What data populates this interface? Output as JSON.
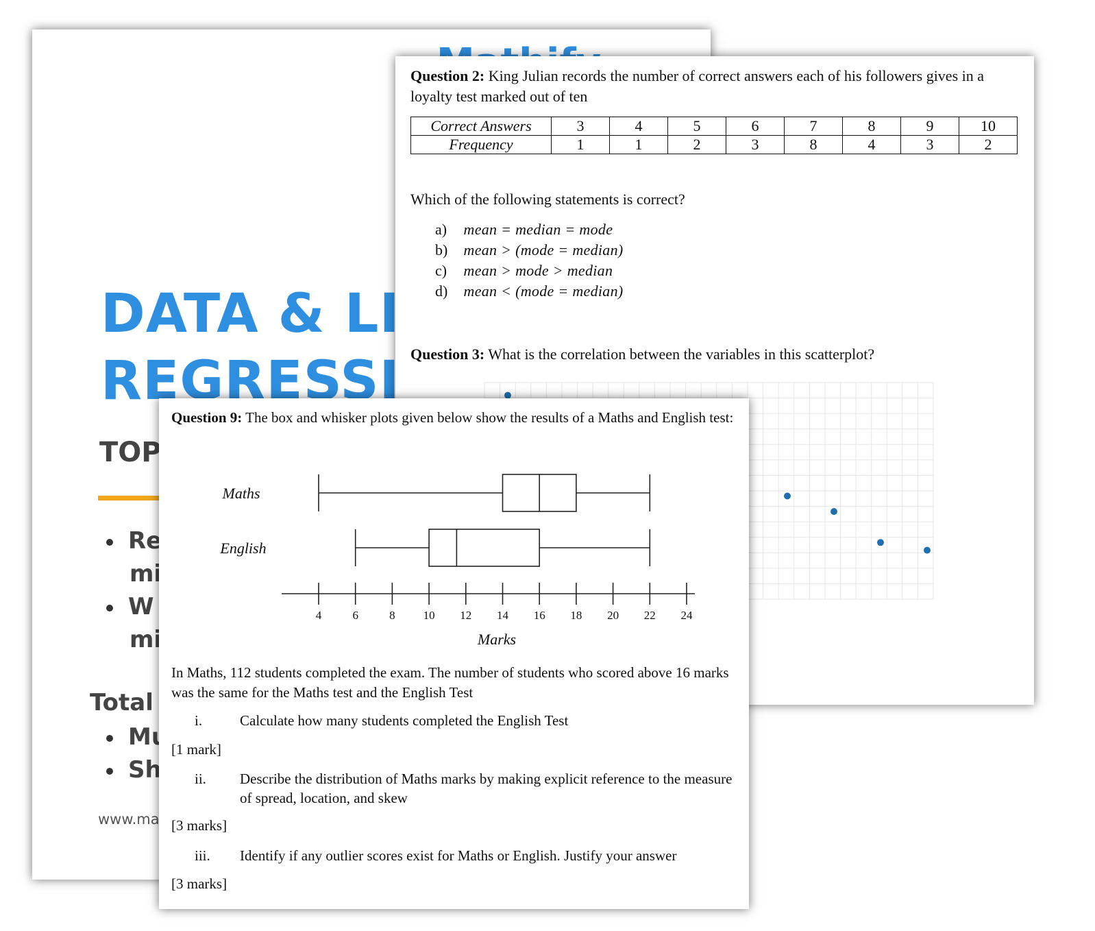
{
  "cover": {
    "logo": "Mathify",
    "title_line1": "DATA & LIN",
    "title_line2": "REGRESSIO",
    "topics_heading": "TOP",
    "bullets": [
      {
        "line1": "Re",
        "line2": "mi"
      },
      {
        "line1": "W",
        "line2": "mi"
      }
    ],
    "total_heading": "Total",
    "total_bullets": [
      "Mu",
      "Sh"
    ],
    "url": "www.mat",
    "accent_color": "#2e8fe0",
    "rule_color": "#f2a71b"
  },
  "question2": {
    "label": "Question 2:",
    "text": "King Julian records the number of correct answers each of his followers gives in a loyalty test marked out of ten",
    "table": {
      "row1_header": "Correct Answers",
      "row2_header": "Frequency",
      "correct_answers": [
        "3",
        "4",
        "5",
        "6",
        "7",
        "8",
        "9",
        "10"
      ],
      "frequency": [
        "1",
        "1",
        "2",
        "3",
        "8",
        "4",
        "3",
        "2"
      ]
    },
    "prompt": "Which of the following statements is correct?",
    "options": [
      {
        "label": "a)",
        "text": "mean = median = mode"
      },
      {
        "label": "b)",
        "text": "mean > (mode = median)"
      },
      {
        "label": "c)",
        "text": "mean > mode > median"
      },
      {
        "label": "d)",
        "text": "mean < (mode = median)"
      }
    ]
  },
  "question3": {
    "label": "Question 3:",
    "text": "What is the correlation between the variables in this scatterplot?"
  },
  "question9": {
    "label": "Question 9:",
    "text": "The box and whisker plots given below show the results of a Maths and English test:",
    "body": "In Maths, 112 students completed the exam. The number of students who scored above 16 marks was the same for the Maths test and the English Test",
    "subquestions": [
      {
        "num": "i.",
        "text": "Calculate how many students completed the English Test",
        "marks": "[1 mark]"
      },
      {
        "num": "ii.",
        "text": "Describe the distribution of Maths marks by making explicit reference to the measure of spread, location, and skew",
        "marks": "[3 marks]"
      },
      {
        "num": "iii.",
        "text": "Identify if any outlier scores exist for Maths or English. Justify your answer",
        "marks": "[3 marks]"
      }
    ]
  },
  "chart_data": [
    {
      "type": "boxplot",
      "title": "",
      "xlabel": "Marks",
      "ylabel": "",
      "xlim": [
        4,
        24
      ],
      "ticks": [
        4,
        6,
        8,
        10,
        12,
        14,
        16,
        18,
        20,
        22,
        24
      ],
      "series": [
        {
          "name": "Maths",
          "min": 4,
          "q1": 14,
          "median": 16,
          "q3": 18,
          "max": 22
        },
        {
          "name": "English",
          "min": 6,
          "q1": 10,
          "median": 11.5,
          "q3": 16,
          "max": 22
        }
      ]
    },
    {
      "type": "scatter",
      "title": "",
      "xlabel": "",
      "ylabel": "",
      "grid": true,
      "x": [
        1,
        13,
        15,
        17,
        19
      ],
      "y": [
        14,
        7.5,
        6.5,
        4.5,
        4
      ]
    }
  ]
}
